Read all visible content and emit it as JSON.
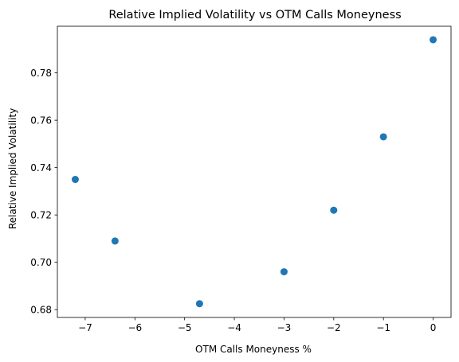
{
  "chart_data": {
    "type": "scatter",
    "title": "Relative Implied Volatility vs OTM Calls Moneyness",
    "xlabel": "OTM Calls Moneyness %",
    "ylabel": "Relative Implied Volatility",
    "xlim": [
      -7.56,
      0.36
    ],
    "ylim": [
      0.6767,
      0.7997
    ],
    "xticks": [
      -7,
      -6,
      -5,
      -4,
      -3,
      -2,
      -1,
      0
    ],
    "xtick_labels": [
      "−7",
      "−6",
      "−5",
      "−4",
      "−3",
      "−2",
      "−1",
      "0"
    ],
    "yticks": [
      0.68,
      0.7,
      0.72,
      0.74,
      0.76,
      0.78
    ],
    "ytick_labels": [
      "0.68",
      "0.70",
      "0.72",
      "0.74",
      "0.76",
      "0.78"
    ],
    "grid": false,
    "marker_color": "#1f77b4",
    "points": [
      {
        "x": -7.2,
        "y": 0.735
      },
      {
        "x": -6.4,
        "y": 0.709
      },
      {
        "x": -4.7,
        "y": 0.6825
      },
      {
        "x": -3.0,
        "y": 0.696
      },
      {
        "x": -2.0,
        "y": 0.722
      },
      {
        "x": -1.0,
        "y": 0.753
      },
      {
        "x": 0.0,
        "y": 0.794
      }
    ]
  }
}
